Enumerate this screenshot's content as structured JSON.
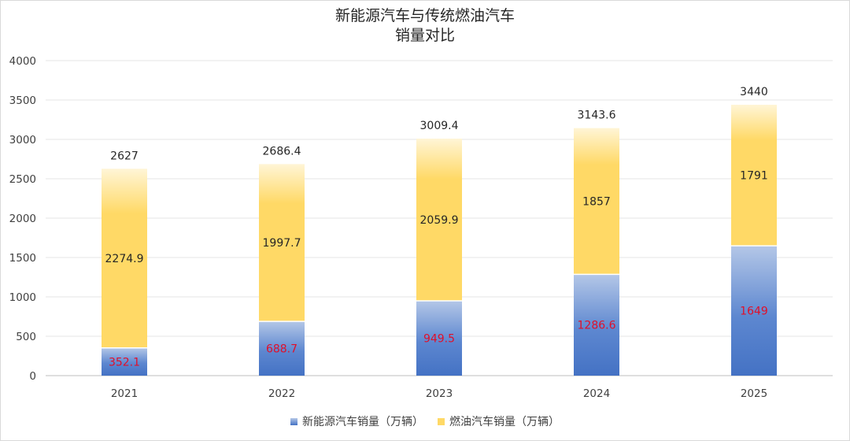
{
  "chart_data": {
    "type": "bar",
    "stacked": true,
    "title_lines": [
      "新能源汽车与传统燃油汽车",
      "销量对比"
    ],
    "categories": [
      "2021",
      "2022",
      "2023",
      "2024",
      "2025"
    ],
    "series": [
      {
        "name": "新能源汽车销量（万辆）",
        "values": [
          352.1,
          688.7,
          949.5,
          1286.6,
          1649
        ],
        "labels": [
          "352.1",
          "688.7",
          "949.5",
          "1286.6",
          "1649"
        ],
        "color": "#4472c4",
        "color_light": "#b4c7e7"
      },
      {
        "name": "燃油汽车销量（万辆）",
        "values": [
          2274.9,
          1997.7,
          2059.9,
          1857,
          1791
        ],
        "labels": [
          "2274.9",
          "1997.7",
          "2059.9",
          "1857",
          "1791"
        ],
        "color": "#ffd966",
        "color_light": "#fff5d6"
      }
    ],
    "totals": [
      2627,
      2686.4,
      3009.4,
      3143.6,
      3440
    ],
    "total_labels": [
      "2627",
      "2686.4",
      "3009.4",
      "3143.6",
      "3440"
    ],
    "yticks": [
      "0",
      "500",
      "1000",
      "1500",
      "2000",
      "2500",
      "3000",
      "3500",
      "4000"
    ],
    "ylim": [
      0,
      4000
    ],
    "grid": true,
    "legend_position": "bottom",
    "label_colors": {
      "new_energy": "#e0102a",
      "fuel": "#262626",
      "total": "#262626"
    }
  }
}
